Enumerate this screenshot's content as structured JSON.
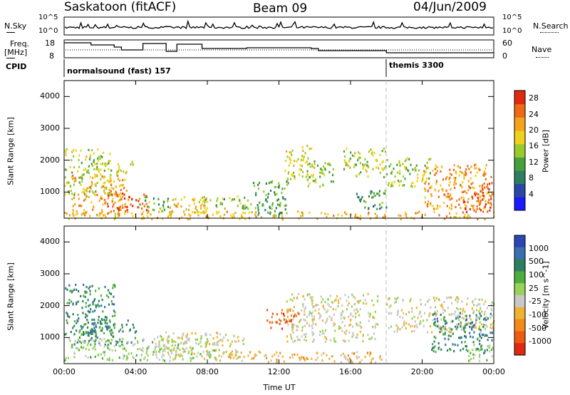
{
  "header": {
    "site": "Saskatoon (fitACF)",
    "beam": "Beam 09",
    "date": "04/Jun/2009"
  },
  "left_labels": {
    "nsky": "N.Sky",
    "freq_line1": "Freq.",
    "freq_line2": "[MHz]",
    "cpid": "CPID"
  },
  "right_labels": {
    "nsearch": "N.Search",
    "nave": "Nave"
  },
  "nsky_axis": {
    "top": "10^5",
    "bottom": "10^0"
  },
  "freq_axis": {
    "top": "18",
    "bottom": "8"
  },
  "nave_axis": {
    "top": "60",
    "bottom": "0"
  },
  "cpid": [
    {
      "label": "normalsound (fast) 157",
      "start_hour": 0
    },
    {
      "label": "themis 3300",
      "start_hour": 18
    }
  ],
  "colors": {
    "power_scale": [
      "#1a1aff",
      "#2a46a6",
      "#2d7f5f",
      "#46a13c",
      "#9acb2b",
      "#f0d21a",
      "#f3a31c",
      "#ef6a14",
      "#e02a10"
    ],
    "velocity_scale": [
      "#2d46b3",
      "#3b6fb0",
      "#2e7f62",
      "#4cae3c",
      "#99d35a",
      "#c8c8c8",
      "#f0b233",
      "#f28a1a",
      "#ef5a12",
      "#e02810"
    ]
  },
  "chart_data": [
    {
      "type": "heatmap",
      "title": "",
      "xlabel": "Time UT",
      "ylabel": "Slant Range [km]",
      "xlim": [
        0,
        24
      ],
      "ylim": [
        180,
        4500
      ],
      "x_ticks": [
        "00:00",
        "04:00",
        "08:00",
        "12:00",
        "16:00",
        "20:00",
        "00:00"
      ],
      "y_ticks": [
        "1000",
        "2000",
        "3000",
        "4000"
      ],
      "colorbar": {
        "label": "Power [dB]",
        "ticks": [
          "4",
          "8",
          "12",
          "16",
          "20",
          "24",
          "28"
        ],
        "range": [
          0,
          30
        ]
      },
      "regions": [
        {
          "t0": 0.0,
          "t1": 2.6,
          "r0": 900,
          "r1": 2400,
          "level": 16
        },
        {
          "t0": 0.4,
          "t1": 3.5,
          "r0": 300,
          "r1": 1600,
          "level": 22
        },
        {
          "t0": 2.4,
          "t1": 3.1,
          "r0": 450,
          "r1": 1100,
          "level": 27
        },
        {
          "t0": 3.2,
          "t1": 4.6,
          "r0": 400,
          "r1": 1000,
          "level": 28
        },
        {
          "t0": 2.8,
          "t1": 3.9,
          "r0": 1600,
          "r1": 2000,
          "level": 18
        },
        {
          "t0": 4.2,
          "t1": 5.8,
          "r0": 400,
          "r1": 900,
          "level": 12
        },
        {
          "t0": 5.8,
          "t1": 8.0,
          "r0": 300,
          "r1": 900,
          "level": 20
        },
        {
          "t0": 7.5,
          "t1": 10.5,
          "r0": 500,
          "r1": 900,
          "level": 14
        },
        {
          "t0": 10.5,
          "t1": 12.5,
          "r0": 300,
          "r1": 1400,
          "level": 11
        },
        {
          "t0": 12.3,
          "t1": 14.0,
          "r0": 1400,
          "r1": 2500,
          "level": 17
        },
        {
          "t0": 13.5,
          "t1": 15.0,
          "r0": 1200,
          "r1": 2000,
          "level": 14
        },
        {
          "t0": 15.5,
          "t1": 18.0,
          "r0": 1500,
          "r1": 2400,
          "level": 16
        },
        {
          "t0": 16.2,
          "t1": 18.0,
          "r0": 500,
          "r1": 1100,
          "level": 9
        },
        {
          "t0": 18.0,
          "t1": 20.5,
          "r0": 1200,
          "r1": 2100,
          "level": 15
        },
        {
          "t0": 20.0,
          "t1": 23.9,
          "r0": 500,
          "r1": 1900,
          "level": 23
        },
        {
          "t0": 22.2,
          "t1": 23.9,
          "r0": 400,
          "r1": 1300,
          "level": 27
        },
        {
          "t0": 0.0,
          "t1": 24.0,
          "r0": 180,
          "r1": 420,
          "level": 21
        }
      ]
    },
    {
      "type": "heatmap",
      "title": "",
      "xlabel": "Time UT",
      "ylabel": "Slant Range [km]",
      "xlim": [
        0,
        24
      ],
      "ylim": [
        180,
        4500
      ],
      "x_ticks": [
        "00:00",
        "04:00",
        "08:00",
        "12:00",
        "16:00",
        "20:00",
        "00:00"
      ],
      "y_ticks": [
        "1000",
        "2000",
        "3000",
        "4000"
      ],
      "colorbar": {
        "label": "Velocity [m s^-1]",
        "ticks": [
          "1000",
          "500",
          "100",
          "25",
          "-25",
          "-100",
          "-500",
          "-1000"
        ]
      },
      "regions": [
        {
          "t0": 0.0,
          "t1": 2.8,
          "r0": 1100,
          "r1": 2700,
          "level": 2
        },
        {
          "t0": 0.5,
          "t1": 4.0,
          "r0": 800,
          "r1": 1600,
          "level": 2
        },
        {
          "t0": 0.0,
          "t1": 8.5,
          "r0": 300,
          "r1": 1000,
          "level": 4
        },
        {
          "t0": 5.0,
          "t1": 10.0,
          "r0": 300,
          "r1": 1200,
          "level": 5
        },
        {
          "t0": 11.3,
          "t1": 13.2,
          "r0": 1300,
          "r1": 1900,
          "level": 8
        },
        {
          "t0": 12.3,
          "t1": 17.5,
          "r0": 900,
          "r1": 2400,
          "level": 5
        },
        {
          "t0": 9.0,
          "t1": 18.0,
          "r0": 250,
          "r1": 600,
          "level": 6
        },
        {
          "t0": 18.0,
          "t1": 24.0,
          "r0": 1200,
          "r1": 2300,
          "level": 5
        },
        {
          "t0": 20.5,
          "t1": 23.9,
          "r0": 500,
          "r1": 1800,
          "level": 2
        },
        {
          "t0": 22.5,
          "t1": 24.0,
          "r0": 300,
          "r1": 800,
          "level": 4
        }
      ]
    }
  ]
}
